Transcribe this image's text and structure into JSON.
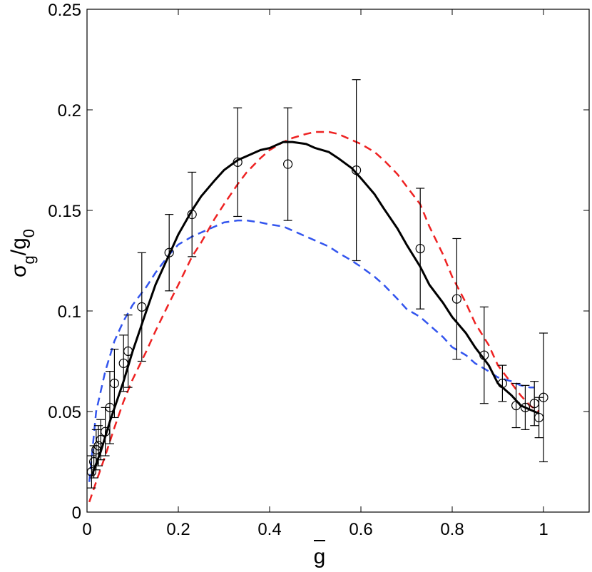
{
  "chart_data": {
    "type": "line",
    "title": "",
    "xlabel": "g",
    "ylabel": {
      "base1": "σ",
      "sub1": "g",
      "mid": "/g",
      "sub2": "0"
    },
    "xlim": [
      0,
      1.1
    ],
    "ylim": [
      0,
      0.25
    ],
    "grid": false,
    "legend": "none",
    "xticks": [
      0,
      0.2,
      0.4,
      0.6,
      0.8,
      1
    ],
    "xtick_labels": [
      "0",
      "0.2",
      "0.4",
      "0.6",
      "0.8",
      "1"
    ],
    "yticks": [
      0,
      0.05,
      0.1,
      0.15,
      0.2,
      0.25
    ],
    "ytick_labels": [
      "0",
      "0.05",
      "0.1",
      "0.15",
      "0.2",
      "0.25"
    ],
    "series": [
      {
        "style": "solid",
        "color": "#000000",
        "x": [
          0.01,
          0.03,
          0.05,
          0.08,
          0.1,
          0.13,
          0.15,
          0.18,
          0.2,
          0.23,
          0.25,
          0.28,
          0.3,
          0.33,
          0.35,
          0.38,
          0.4,
          0.43,
          0.45,
          0.48,
          0.5,
          0.53,
          0.55,
          0.58,
          0.6,
          0.63,
          0.65,
          0.68,
          0.7,
          0.73,
          0.75,
          0.78,
          0.8,
          0.83,
          0.85,
          0.88,
          0.9,
          0.93,
          0.95,
          0.97,
          0.98,
          0.99
        ],
        "y": [
          0.018,
          0.03,
          0.045,
          0.065,
          0.08,
          0.1,
          0.113,
          0.128,
          0.138,
          0.15,
          0.157,
          0.165,
          0.17,
          0.175,
          0.177,
          0.18,
          0.181,
          0.184,
          0.184,
          0.183,
          0.181,
          0.179,
          0.176,
          0.171,
          0.166,
          0.158,
          0.151,
          0.141,
          0.133,
          0.122,
          0.113,
          0.104,
          0.097,
          0.089,
          0.082,
          0.073,
          0.064,
          0.058,
          0.053,
          0.051,
          0.05,
          0.049
        ]
      },
      {
        "style": "dashed",
        "color": "#ee2222",
        "x": [
          0.005,
          0.02,
          0.04,
          0.06,
          0.08,
          0.1,
          0.13,
          0.15,
          0.18,
          0.2,
          0.23,
          0.25,
          0.28,
          0.3,
          0.33,
          0.35,
          0.38,
          0.4,
          0.43,
          0.45,
          0.48,
          0.5,
          0.53,
          0.55,
          0.58,
          0.6,
          0.63,
          0.65,
          0.68,
          0.7,
          0.73,
          0.75,
          0.78,
          0.8,
          0.83,
          0.85,
          0.88,
          0.9,
          0.93,
          0.95,
          0.97,
          0.99
        ],
        "y": [
          0.005,
          0.015,
          0.028,
          0.042,
          0.055,
          0.066,
          0.08,
          0.09,
          0.104,
          0.113,
          0.127,
          0.134,
          0.146,
          0.153,
          0.163,
          0.169,
          0.176,
          0.18,
          0.184,
          0.186,
          0.188,
          0.189,
          0.189,
          0.188,
          0.185,
          0.183,
          0.179,
          0.175,
          0.168,
          0.162,
          0.153,
          0.142,
          0.128,
          0.117,
          0.104,
          0.094,
          0.083,
          0.073,
          0.064,
          0.058,
          0.053,
          0.05
        ]
      },
      {
        "style": "dashed",
        "color": "#3355ee",
        "x": [
          0.005,
          0.02,
          0.04,
          0.06,
          0.08,
          0.1,
          0.13,
          0.15,
          0.18,
          0.2,
          0.23,
          0.25,
          0.28,
          0.3,
          0.33,
          0.35,
          0.38,
          0.4,
          0.43,
          0.45,
          0.48,
          0.5,
          0.53,
          0.55,
          0.58,
          0.6,
          0.63,
          0.65,
          0.68,
          0.7,
          0.73,
          0.75,
          0.78,
          0.8,
          0.83,
          0.85,
          0.88,
          0.9,
          0.93,
          0.95,
          0.97,
          0.98
        ],
        "y": [
          0.015,
          0.05,
          0.07,
          0.085,
          0.095,
          0.103,
          0.112,
          0.119,
          0.128,
          0.133,
          0.137,
          0.139,
          0.142,
          0.144,
          0.145,
          0.145,
          0.144,
          0.143,
          0.142,
          0.14,
          0.137,
          0.135,
          0.132,
          0.129,
          0.125,
          0.122,
          0.117,
          0.113,
          0.106,
          0.101,
          0.097,
          0.093,
          0.087,
          0.082,
          0.078,
          0.074,
          0.07,
          0.067,
          0.065,
          0.063,
          0.062,
          0.062
        ]
      }
    ],
    "points": {
      "marker": "open-circle",
      "x": [
        0.01,
        0.015,
        0.02,
        0.025,
        0.03,
        0.04,
        0.05,
        0.06,
        0.08,
        0.09,
        0.12,
        0.18,
        0.23,
        0.33,
        0.44,
        0.59,
        0.73,
        0.81,
        0.87,
        0.91,
        0.94,
        0.96,
        0.98,
        0.99,
        1.0
      ],
      "y": [
        0.02,
        0.025,
        0.031,
        0.033,
        0.036,
        0.04,
        0.052,
        0.064,
        0.074,
        0.08,
        0.102,
        0.129,
        0.148,
        0.174,
        0.173,
        0.17,
        0.131,
        0.106,
        0.078,
        0.064,
        0.053,
        0.052,
        0.054,
        0.047,
        0.057
      ],
      "err": [
        0.008,
        0.008,
        0.01,
        0.01,
        0.01,
        0.012,
        0.018,
        0.017,
        0.014,
        0.018,
        0.027,
        0.019,
        0.021,
        0.027,
        0.028,
        0.045,
        0.03,
        0.03,
        0.024,
        0.009,
        0.011,
        0.011,
        0.011,
        0.01,
        0.032
      ]
    }
  }
}
